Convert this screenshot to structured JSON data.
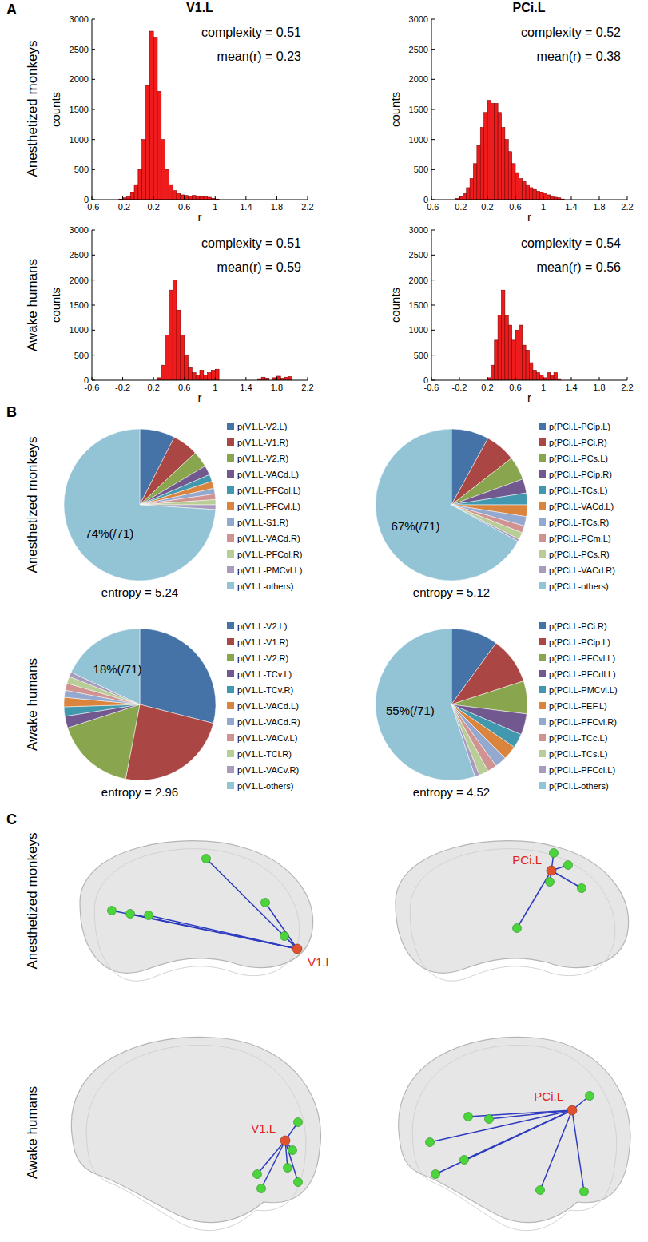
{
  "panel_labels": [
    "A",
    "B",
    "C"
  ],
  "column_titles": [
    "V1.L",
    "PCi.L"
  ],
  "row_labels": [
    "Anesthetized monkeys",
    "Awake humans"
  ],
  "chart_data": [
    {
      "type": "histogram",
      "x_label": "r",
      "y_label": "counts",
      "color": "#ee1c1c",
      "annotations": [
        "complexity = 0.51",
        "mean(r) = 0.23"
      ],
      "xlim": [
        -0.6,
        2.2
      ],
      "xticks": [
        -0.6,
        -0.2,
        0.2,
        0.6,
        1,
        1.4,
        1.8,
        2.2
      ],
      "ylim": [
        0,
        3000
      ],
      "yticks": [
        0,
        500,
        1000,
        1500,
        2000,
        2500,
        3000
      ],
      "bins": [
        -0.3,
        -0.25,
        -0.2,
        -0.15,
        -0.1,
        -0.05,
        0,
        0.05,
        0.1,
        0.15,
        0.2,
        0.25,
        0.3,
        0.35,
        0.4,
        0.45,
        0.5,
        0.55,
        0.6,
        0.65,
        0.7,
        0.75,
        0.8,
        0.85,
        0.9,
        0.95,
        1,
        1.05,
        1.1,
        1.15,
        1.2,
        1.25,
        1.3,
        1.35,
        1.4,
        1.45,
        1.5,
        1.55,
        1.6,
        1.65,
        1.7,
        1.75,
        1.8,
        1.85,
        1.9,
        1.95,
        2,
        2.05,
        2.1
      ],
      "values": [
        0,
        10,
        30,
        60,
        120,
        250,
        500,
        1000,
        1900,
        2800,
        2700,
        1800,
        1000,
        500,
        250,
        150,
        100,
        80,
        70,
        60,
        70,
        60,
        50,
        50,
        40,
        20,
        10,
        0,
        0,
        0,
        0,
        0,
        0,
        0,
        0,
        0,
        0,
        0,
        0,
        0,
        0,
        0,
        0,
        0,
        0,
        0,
        0,
        0
      ]
    },
    {
      "type": "histogram",
      "x_label": "r",
      "y_label": "counts",
      "color": "#ee1c1c",
      "annotations": [
        "complexity = 0.52",
        "mean(r) = 0.38"
      ],
      "xlim": [
        -0.6,
        2.2
      ],
      "xticks": [
        -0.6,
        -0.2,
        0.2,
        0.6,
        1,
        1.4,
        1.8,
        2.2
      ],
      "ylim": [
        0,
        3000
      ],
      "yticks": [
        0,
        500,
        1000,
        1500,
        2000,
        2500,
        3000
      ],
      "bins": [
        -0.3,
        -0.25,
        -0.2,
        -0.15,
        -0.1,
        -0.05,
        0,
        0.05,
        0.1,
        0.15,
        0.2,
        0.25,
        0.3,
        0.35,
        0.4,
        0.45,
        0.5,
        0.55,
        0.6,
        0.65,
        0.7,
        0.75,
        0.8,
        0.85,
        0.9,
        0.95,
        1,
        1.05,
        1.1,
        1.15,
        1.2,
        1.25,
        1.3,
        1.35,
        1.4,
        1.45,
        1.5,
        1.55,
        1.6,
        1.65,
        1.7,
        1.75,
        1.8,
        1.85,
        1.9,
        1.95,
        2,
        2.05,
        2.1
      ],
      "values": [
        0,
        20,
        50,
        100,
        200,
        350,
        600,
        900,
        1200,
        1450,
        1650,
        1600,
        1600,
        1450,
        1200,
        1000,
        800,
        600,
        450,
        350,
        300,
        250,
        200,
        170,
        140,
        120,
        100,
        80,
        60,
        40,
        30,
        10,
        0,
        0,
        0,
        0,
        0,
        0,
        0,
        0,
        0,
        0,
        0,
        0,
        0,
        0,
        0,
        0
      ]
    },
    {
      "type": "histogram",
      "x_label": "r",
      "y_label": "counts",
      "color": "#ee1c1c",
      "annotations": [
        "complexity = 0.51",
        "mean(r) = 0.59"
      ],
      "xlim": [
        -0.6,
        2.2
      ],
      "xticks": [
        -0.6,
        -0.2,
        0.2,
        0.6,
        1,
        1.4,
        1.8,
        2.2
      ],
      "ylim": [
        0,
        3000
      ],
      "yticks": [
        0,
        500,
        1000,
        1500,
        2000,
        2500,
        3000
      ],
      "bins": [
        -0.3,
        -0.25,
        -0.2,
        -0.15,
        -0.1,
        -0.05,
        0,
        0.05,
        0.1,
        0.15,
        0.2,
        0.25,
        0.3,
        0.35,
        0.4,
        0.45,
        0.5,
        0.55,
        0.6,
        0.65,
        0.7,
        0.75,
        0.8,
        0.85,
        0.9,
        0.95,
        1,
        1.05,
        1.1,
        1.15,
        1.2,
        1.25,
        1.3,
        1.35,
        1.4,
        1.45,
        1.5,
        1.55,
        1.6,
        1.65,
        1.7,
        1.75,
        1.8,
        1.85,
        1.9,
        1.95,
        2,
        2.05,
        2.1
      ],
      "values": [
        0,
        0,
        0,
        0,
        0,
        0,
        0,
        0,
        0,
        0,
        0,
        50,
        300,
        900,
        1800,
        2000,
        1400,
        900,
        500,
        250,
        150,
        100,
        200,
        100,
        150,
        200,
        220,
        0,
        0,
        0,
        0,
        0,
        0,
        0,
        0,
        0,
        0,
        30,
        60,
        40,
        0,
        50,
        80,
        40,
        60,
        70,
        0,
        0
      ]
    },
    {
      "type": "histogram",
      "x_label": "r",
      "y_label": "counts",
      "color": "#ee1c1c",
      "annotations": [
        "complexity = 0.54",
        "mean(r) = 0.56"
      ],
      "xlim": [
        -0.6,
        2.2
      ],
      "xticks": [
        -0.6,
        -0.2,
        0.2,
        0.6,
        1,
        1.4,
        1.8,
        2.2
      ],
      "ylim": [
        0,
        3000
      ],
      "yticks": [
        0,
        500,
        1000,
        1500,
        2000,
        2500,
        3000
      ],
      "bins": [
        -0.3,
        -0.25,
        -0.2,
        -0.15,
        -0.1,
        -0.05,
        0,
        0.05,
        0.1,
        0.15,
        0.2,
        0.25,
        0.3,
        0.35,
        0.4,
        0.45,
        0.5,
        0.55,
        0.6,
        0.65,
        0.7,
        0.75,
        0.8,
        0.85,
        0.9,
        0.95,
        1,
        1.05,
        1.1,
        1.15,
        1.2,
        1.25,
        1.3,
        1.35,
        1.4,
        1.45,
        1.5,
        1.55,
        1.6,
        1.65,
        1.7,
        1.75,
        1.8,
        1.85,
        1.9,
        1.95,
        2,
        2.05,
        2.1
      ],
      "values": [
        0,
        0,
        0,
        0,
        0,
        0,
        0,
        0,
        0,
        0,
        50,
        300,
        800,
        1300,
        1800,
        1300,
        1100,
        800,
        1000,
        1100,
        700,
        600,
        350,
        200,
        150,
        100,
        50,
        150,
        100,
        150,
        30,
        0,
        0,
        0,
        0,
        0,
        0,
        0,
        0,
        0,
        0,
        0,
        0,
        0,
        0,
        0,
        0,
        0
      ]
    },
    {
      "type": "pie",
      "legend": "right",
      "annotations": [
        "entropy = 5.24"
      ],
      "categories": [
        "p(V1.L-V2.L)",
        "p(V1.L-V1.R)",
        "p(V1.L-V2.R)",
        "p(V1.L-VACd.L)",
        "p(V1.L-PFCol.L)",
        "p(V1.L-PFCvl.L)",
        "p(V1.L-S1.R)",
        "p(V1.L-VACd.R)",
        "p(V1.L-PFCol.R)",
        "p(V1.L-PMCvl.L)",
        "p(V1.L-others)"
      ],
      "values": [
        7.5,
        5.5,
        3.5,
        2,
        1.5,
        1.5,
        1.2,
        1.2,
        1.1,
        1,
        74
      ],
      "value_labels": [
        null,
        null,
        null,
        null,
        null,
        null,
        null,
        null,
        null,
        null,
        "74%(/71)"
      ],
      "colors": [
        "#4572a7",
        "#aa4643",
        "#89a54e",
        "#71588f",
        "#4198af",
        "#db843d",
        "#93a9cf",
        "#d19392",
        "#b9cd96",
        "#a99bbd",
        "#93c4d6"
      ]
    },
    {
      "type": "pie",
      "legend": "right",
      "annotations": [
        "entropy = 5.12"
      ],
      "categories": [
        "p(PCi.L-PCip.L)",
        "p(PCi.L-PCi.R)",
        "p(PCi.L-PCs.L)",
        "p(PCi.L-PCip.R)",
        "p(PCi.L-TCs.L)",
        "p(PCi.L-VACd.L)",
        "p(PCi.L-TCs.R)",
        "p(PCi.L-PCm.L)",
        "p(PCi.L-PCs.R)",
        "p(PCi.L-VACd.R)",
        "p(PCi.L-others)"
      ],
      "values": [
        8,
        6.5,
        5,
        3,
        2.5,
        2.5,
        2,
        1.5,
        1.5,
        0.5,
        67
      ],
      "value_labels": [
        null,
        null,
        null,
        null,
        null,
        null,
        null,
        null,
        null,
        null,
        "67%(/71)"
      ],
      "colors": [
        "#4572a7",
        "#aa4643",
        "#89a54e",
        "#71588f",
        "#4198af",
        "#db843d",
        "#93a9cf",
        "#d19392",
        "#b9cd96",
        "#a99bbd",
        "#93c4d6"
      ]
    },
    {
      "type": "pie",
      "legend": "right",
      "annotations": [
        "entropy = 2.96"
      ],
      "categories": [
        "p(V1.L-V2.L)",
        "p(V1.L-V1.R)",
        "p(V1.L-V2.R)",
        "p(V1.L-TCv.L)",
        "p(V1.L-TCv.R)",
        "p(V1.L-VACd.L)",
        "p(V1.L-VACd.R)",
        "p(V1.L-VACv.L)",
        "p(V1.L-TCi.R)",
        "p(V1.L-VACv.R)",
        "p(V1.L-others)"
      ],
      "values": [
        29,
        24,
        17,
        2.5,
        2,
        2,
        1.5,
        1.5,
        1.5,
        1,
        18
      ],
      "value_labels": [
        null,
        null,
        null,
        null,
        null,
        null,
        null,
        null,
        null,
        null,
        "18%(/71)"
      ],
      "colors": [
        "#4572a7",
        "#aa4643",
        "#89a54e",
        "#71588f",
        "#4198af",
        "#db843d",
        "#93a9cf",
        "#d19392",
        "#b9cd96",
        "#a99bbd",
        "#93c4d6"
      ]
    },
    {
      "type": "pie",
      "legend": "right",
      "annotations": [
        "entropy = 4.52"
      ],
      "categories": [
        "p(PCi.L-PCi.R)",
        "p(PCi.L-PCip.L)",
        "p(PCi.L-PFCvl.L)",
        "p(PCi.L-PFCdl.L)",
        "p(PCi.L-PMCvl.L)",
        "p(PCi.L-FEF.L)",
        "p(PCi.L-PFCvl.R)",
        "p(PCi.L-TCc.L)",
        "p(PCi.L-TCs.L)",
        "p(PCi.L-PFCcl.L)",
        "p(PCi.L-others)"
      ],
      "values": [
        10,
        10,
        7,
        4.5,
        3,
        3,
        2.5,
        2,
        2,
        1,
        55
      ],
      "value_labels": [
        null,
        null,
        null,
        null,
        null,
        null,
        null,
        null,
        null,
        null,
        "55%(/71)"
      ],
      "colors": [
        "#4572a7",
        "#aa4643",
        "#89a54e",
        "#71588f",
        "#4198af",
        "#db843d",
        "#93a9cf",
        "#d19392",
        "#b9cd96",
        "#a99bbd",
        "#93c4d6"
      ]
    }
  ],
  "diagrams": [
    {
      "seed_label": "V1.L"
    },
    {
      "seed_label": "PCi.L"
    },
    {
      "seed_label": "V1.L"
    },
    {
      "seed_label": "PCi.L"
    }
  ]
}
